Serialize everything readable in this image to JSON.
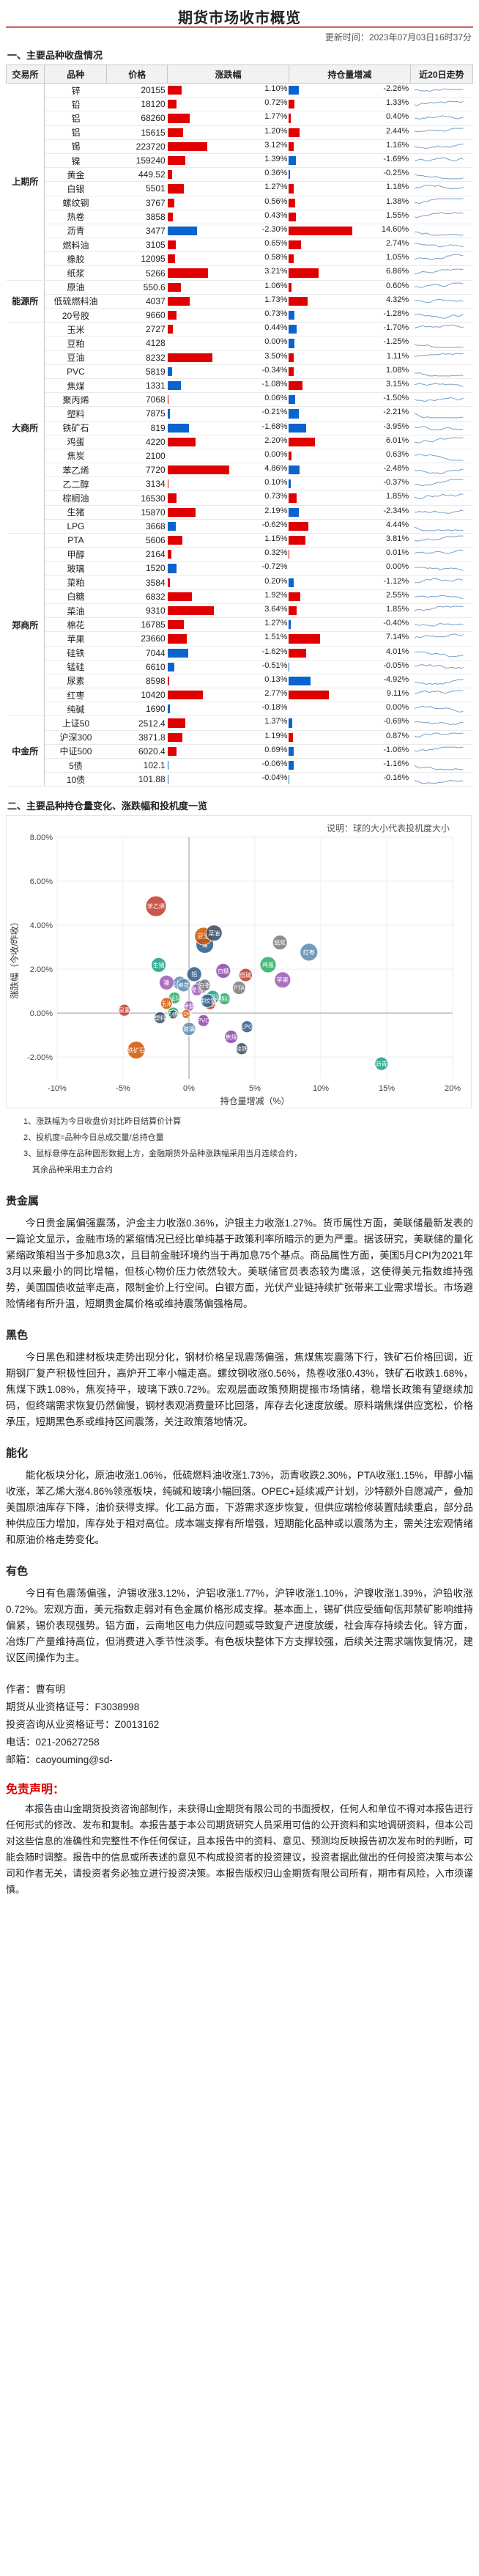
{
  "header": {
    "title": "期货市场收市概览",
    "update_time": "更新时间：2023年07月03日16时37分"
  },
  "section1": {
    "title": "一、主要品种收盘情况",
    "columns": [
      "交易所",
      "品种",
      "价格",
      "涨跌幅",
      "持仓量增减",
      "近20日走势"
    ]
  },
  "table": {
    "groups": [
      {
        "exchange": "上期所",
        "rows": [
          {
            "name": "锌",
            "price": "20155",
            "chg": 1.1,
            "chg_text": "1.10%",
            "pos": -2.26,
            "pos_text": "-2.26%"
          },
          {
            "name": "铅",
            "price": "18120",
            "chg": 0.72,
            "chg_text": "0.72%",
            "pos": 1.33,
            "pos_text": "1.33%"
          },
          {
            "name": "铝",
            "price": "68260",
            "chg": 1.77,
            "chg_text": "1.77%",
            "pos": 0.4,
            "pos_text": "0.40%"
          },
          {
            "name": "铝",
            "price": "15615",
            "chg": 1.2,
            "chg_text": "1.20%",
            "pos": 2.44,
            "pos_text": "2.44%"
          },
          {
            "name": "锡",
            "price": "223720",
            "chg": 3.12,
            "chg_text": "3.12%",
            "pos": 1.16,
            "pos_text": "1.16%"
          },
          {
            "name": "镍",
            "price": "159240",
            "chg": 1.39,
            "chg_text": "1.39%",
            "pos": -1.69,
            "pos_text": "-1.69%"
          },
          {
            "name": "黄金",
            "price": "449.52",
            "chg": 0.36,
            "chg_text": "0.36%",
            "pos": -0.25,
            "pos_text": "-0.25%"
          },
          {
            "name": "白银",
            "price": "5501",
            "chg": 1.27,
            "chg_text": "1.27%",
            "pos": 1.18,
            "pos_text": "1.18%"
          },
          {
            "name": "螺纹钢",
            "price": "3767",
            "chg": 0.56,
            "chg_text": "0.56%",
            "pos": 1.38,
            "pos_text": "1.38%"
          },
          {
            "name": "热卷",
            "price": "3858",
            "chg": 0.43,
            "chg_text": "0.43%",
            "pos": 1.55,
            "pos_text": "1.55%"
          },
          {
            "name": "沥青",
            "price": "3477",
            "chg": -2.3,
            "chg_text": "-2.30%",
            "pos": 14.6,
            "pos_text": "14.60%"
          },
          {
            "name": "燃料油",
            "price": "3105",
            "chg": 0.65,
            "chg_text": "0.65%",
            "pos": 2.74,
            "pos_text": "2.74%"
          },
          {
            "name": "橡胶",
            "price": "12095",
            "chg": 0.58,
            "chg_text": "0.58%",
            "pos": 1.05,
            "pos_text": "1.05%"
          },
          {
            "name": "纸浆",
            "price": "5266",
            "chg": 3.21,
            "chg_text": "3.21%",
            "pos": 6.86,
            "pos_text": "6.86%"
          }
        ]
      },
      {
        "exchange": "能源所",
        "rows": [
          {
            "name": "原油",
            "price": "550.6",
            "chg": 1.06,
            "chg_text": "1.06%",
            "pos": 0.6,
            "pos_text": "0.60%"
          },
          {
            "name": "低硫燃料油",
            "price": "4037",
            "chg": 1.73,
            "chg_text": "1.73%",
            "pos": 4.32,
            "pos_text": "4.32%"
          },
          {
            "name": "20号胶",
            "price": "9660",
            "chg": 0.73,
            "chg_text": "0.73%",
            "pos": -1.28,
            "pos_text": "-1.28%"
          }
        ]
      },
      {
        "exchange": "大商所",
        "rows": [
          {
            "name": "玉米",
            "price": "2727",
            "chg": 0.44,
            "chg_text": "0.44%",
            "pos": -1.7,
            "pos_text": "-1.70%"
          },
          {
            "name": "豆粕",
            "price": "4128",
            "chg": 0.0,
            "chg_text": "0.00%",
            "pos": -1.25,
            "pos_text": "-1.25%"
          },
          {
            "name": "豆油",
            "price": "8232",
            "chg": 3.5,
            "chg_text": "3.50%",
            "pos": 1.11,
            "pos_text": "1.11%"
          },
          {
            "name": "PVC",
            "price": "5819",
            "chg": -0.34,
            "chg_text": "-0.34%",
            "pos": 1.08,
            "pos_text": "1.08%"
          },
          {
            "name": "焦煤",
            "price": "1331",
            "chg": -1.08,
            "chg_text": "-1.08%",
            "pos": 3.15,
            "pos_text": "3.15%"
          },
          {
            "name": "聚丙烯",
            "price": "7068",
            "chg": 0.06,
            "chg_text": "0.06%",
            "pos": -1.5,
            "pos_text": "-1.50%"
          },
          {
            "name": "塑料",
            "price": "7875",
            "chg": -0.21,
            "chg_text": "-0.21%",
            "pos": -2.21,
            "pos_text": "-2.21%"
          },
          {
            "name": "铁矿石",
            "price": "819",
            "chg": -1.68,
            "chg_text": "-1.68%",
            "pos": -3.95,
            "pos_text": "-3.95%"
          },
          {
            "name": "鸡蛋",
            "price": "4220",
            "chg": 2.2,
            "chg_text": "2.20%",
            "pos": 6.01,
            "pos_text": "6.01%"
          },
          {
            "name": "焦炭",
            "price": "2100",
            "chg": 0.0,
            "chg_text": "0.00%",
            "pos": 0.63,
            "pos_text": "0.63%"
          },
          {
            "name": "苯乙烯",
            "price": "7720",
            "chg": 4.86,
            "chg_text": "4.86%",
            "pos": -2.48,
            "pos_text": "-2.48%"
          },
          {
            "name": "乙二醇",
            "price": "3134",
            "chg": 0.1,
            "chg_text": "0.10%",
            "pos": -0.37,
            "pos_text": "-0.37%"
          },
          {
            "name": "棕榈油",
            "price": "16530",
            "chg": 0.73,
            "chg_text": "0.73%",
            "pos": 1.85,
            "pos_text": "1.85%"
          },
          {
            "name": "生猪",
            "price": "15870",
            "chg": 2.19,
            "chg_text": "2.19%",
            "pos": -2.34,
            "pos_text": "-2.34%"
          },
          {
            "name": "LPG",
            "price": "3668",
            "chg": -0.62,
            "chg_text": "-0.62%",
            "pos": 4.44,
            "pos_text": "4.44%"
          }
        ]
      },
      {
        "exchange": "郑商所",
        "rows": [
          {
            "name": "PTA",
            "price": "5606",
            "chg": 1.15,
            "chg_text": "1.15%",
            "pos": 3.81,
            "pos_text": "3.81%"
          },
          {
            "name": "甲醇",
            "price": "2164",
            "chg": 0.32,
            "chg_text": "0.32%",
            "pos": 0.01,
            "pos_text": "0.01%"
          },
          {
            "name": "玻璃",
            "price": "1520",
            "chg": -0.72,
            "chg_text": "-0.72%",
            "pos": 0.0,
            "pos_text": "0.00%"
          },
          {
            "name": "菜粕",
            "price": "3584",
            "chg": 0.2,
            "chg_text": "0.20%",
            "pos": -1.12,
            "pos_text": "-1.12%"
          },
          {
            "name": "白糖",
            "price": "6832",
            "chg": 1.92,
            "chg_text": "1.92%",
            "pos": 2.55,
            "pos_text": "2.55%"
          },
          {
            "name": "菜油",
            "price": "9310",
            "chg": 3.64,
            "chg_text": "3.64%",
            "pos": 1.85,
            "pos_text": "1.85%"
          },
          {
            "name": "棉花",
            "price": "16785",
            "chg": 1.27,
            "chg_text": "1.27%",
            "pos": -0.4,
            "pos_text": "-0.40%"
          },
          {
            "name": "苹果",
            "price": "23660",
            "chg": 1.51,
            "chg_text": "1.51%",
            "pos": 7.14,
            "pos_text": "7.14%"
          },
          {
            "name": "硅铁",
            "price": "7044",
            "chg": -1.62,
            "chg_text": "-1.62%",
            "pos": 4.01,
            "pos_text": "4.01%"
          },
          {
            "name": "锰硅",
            "price": "6610",
            "chg": -0.51,
            "chg_text": "-0.51%",
            "pos": -0.05,
            "pos_text": "-0.05%"
          },
          {
            "name": "尿素",
            "price": "8598",
            "chg": 0.13,
            "chg_text": "0.13%",
            "pos": -4.92,
            "pos_text": "-4.92%"
          },
          {
            "name": "红枣",
            "price": "10420",
            "chg": 2.77,
            "chg_text": "2.77%",
            "pos": 9.11,
            "pos_text": "9.11%"
          },
          {
            "name": "纯碱",
            "price": "1690",
            "chg": -0.18,
            "chg_text": "-0.18%",
            "pos": 0.0,
            "pos_text": "0.00%"
          }
        ]
      },
      {
        "exchange": "中金所",
        "rows": [
          {
            "name": "上证50",
            "price": "2512.4",
            "chg": 1.37,
            "chg_text": "1.37%",
            "pos": -0.69,
            "pos_text": "-0.69%"
          },
          {
            "name": "沪深300",
            "price": "3871.8",
            "chg": 1.19,
            "chg_text": "1.19%",
            "pos": 0.87,
            "pos_text": "0.87%"
          },
          {
            "name": "中证500",
            "price": "6020.4",
            "chg": 0.69,
            "chg_text": "0.69%",
            "pos": -1.06,
            "pos_text": "-1.06%"
          },
          {
            "name": "5债",
            "price": "102.1",
            "chg": -0.06,
            "chg_text": "-0.06%",
            "pos": -1.16,
            "pos_text": "-1.16%"
          },
          {
            "name": "10债",
            "price": "101.88",
            "chg": -0.04,
            "chg_text": "-0.04%",
            "pos": -0.16,
            "pos_text": "-0.16%"
          }
        ]
      }
    ]
  },
  "section2": {
    "title": "二、主要品种持仓量变化、涨跌幅和投机度一览",
    "note_label": "说明：球的大小代表投机度大小"
  },
  "chart_data": {
    "type": "scatter",
    "xlabel": "持仓量增减（%）",
    "ylabel": "涨跌幅（今收/昨收）",
    "xlim": [
      -0.1,
      0.2
    ],
    "ylim": [
      -0.03,
      0.08
    ],
    "x_ticks": [
      "-10%",
      "-5%",
      "0%",
      "5%",
      "10%",
      "15%",
      "20%"
    ],
    "y_ticks": [
      "-2.00%",
      "0.00%",
      "2.00%",
      "4.00%",
      "6.00%",
      "8.00%"
    ],
    "points": [
      {
        "label": "苯乙烯",
        "x": -0.025,
        "y": 0.0486,
        "size": 14
      },
      {
        "label": "锡",
        "x": 0.012,
        "y": 0.0312,
        "size": 12
      },
      {
        "label": "纸浆",
        "x": 0.069,
        "y": 0.0321,
        "size": 10
      },
      {
        "label": "红枣",
        "x": 0.091,
        "y": 0.0277,
        "size": 12
      },
      {
        "label": "苹果",
        "x": 0.071,
        "y": 0.0151,
        "size": 11
      },
      {
        "label": "鸡蛋",
        "x": 0.06,
        "y": 0.022,
        "size": 11
      },
      {
        "label": "豆油",
        "x": 0.011,
        "y": 0.035,
        "size": 12
      },
      {
        "label": "菜油",
        "x": 0.019,
        "y": 0.0364,
        "size": 11
      },
      {
        "label": "白糖",
        "x": 0.026,
        "y": 0.0192,
        "size": 10
      },
      {
        "label": "生猪",
        "x": -0.023,
        "y": 0.0219,
        "size": 10
      },
      {
        "label": "低硫",
        "x": 0.043,
        "y": 0.0173,
        "size": 9
      },
      {
        "label": "铝",
        "x": 0.004,
        "y": 0.0177,
        "size": 10
      },
      {
        "label": "沪深300",
        "x": 0.009,
        "y": 0.0119,
        "size": 9
      },
      {
        "label": "上证50",
        "x": -0.007,
        "y": 0.0137,
        "size": 9
      },
      {
        "label": "镍",
        "x": -0.017,
        "y": 0.0139,
        "size": 10
      },
      {
        "label": "燃料油",
        "x": 0.027,
        "y": 0.0065,
        "size": 8
      },
      {
        "label": "铁矿石",
        "x": -0.04,
        "y": -0.0168,
        "size": 12
      },
      {
        "label": "硅铁",
        "x": 0.04,
        "y": -0.0162,
        "size": 8
      },
      {
        "label": "焦煤",
        "x": 0.032,
        "y": -0.0108,
        "size": 9
      },
      {
        "label": "沥青",
        "x": 0.146,
        "y": -0.023,
        "size": 9
      },
      {
        "label": "尿素",
        "x": -0.049,
        "y": 0.0013,
        "size": 8
      },
      {
        "label": "LPG",
        "x": 0.044,
        "y": -0.0062,
        "size": 8
      },
      {
        "label": "PTA",
        "x": 0.038,
        "y": 0.0115,
        "size": 9
      },
      {
        "label": "玻璃",
        "x": 0.0,
        "y": -0.0072,
        "size": 9
      },
      {
        "label": "原油",
        "x": 0.006,
        "y": 0.0106,
        "size": 8
      },
      {
        "label": "中证500",
        "x": -0.011,
        "y": 0.0069,
        "size": 8
      },
      {
        "label": "玉米",
        "x": -0.017,
        "y": 0.0044,
        "size": 8
      },
      {
        "label": "塑料",
        "x": -0.022,
        "y": -0.0021,
        "size": 8
      },
      {
        "label": "PVC",
        "x": 0.011,
        "y": -0.0034,
        "size": 8
      },
      {
        "label": "棕榈油",
        "x": 0.018,
        "y": 0.0073,
        "size": 9
      },
      {
        "label": "热卷",
        "x": 0.016,
        "y": 0.0043,
        "size": 8
      },
      {
        "label": "螺纹钢",
        "x": 0.014,
        "y": 0.0056,
        "size": 9
      },
      {
        "label": "白银",
        "x": 0.012,
        "y": 0.0127,
        "size": 8
      },
      {
        "label": "棉花",
        "x": -0.004,
        "y": 0.0127,
        "size": 9
      },
      {
        "label": "甲醇",
        "x": 0.0,
        "y": 0.0032,
        "size": 7
      },
      {
        "label": "豆粕",
        "x": -0.012,
        "y": 0.0,
        "size": 8
      },
      {
        "label": "10债",
        "x": -0.002,
        "y": -0.0004,
        "size": 6
      },
      {
        "label": "5债",
        "x": -0.012,
        "y": -0.0006,
        "size": 6
      }
    ]
  },
  "chart_notes": [
    "1、涨跌幅为今日收盘价对比昨日结算价计算",
    "2、投机度=品种今日总成交量/总持仓量",
    "3、鼠标悬停在品种圆形数据上方，金融期货外品种涨跌幅采用当月连续合约，"
  ],
  "chart_notes_cont": "其余品种采用主力合约",
  "articles": [
    {
      "title": "贵金属",
      "body": "今日贵金属偏强震荡，沪金主力收涨0.36%，沪银主力收涨1.27%。货币属性方面，美联储最新发表的一篇论文显示，金融市场的紧缩情况已经比单纯基于政策利率所暗示的更为严重。据该研究，美联储的量化紧缩政策相当于多加息3次，且目前金融环境约当于再加息75个基点。商品属性方面，美国5月CPI为2021年3月以来最小的同比增幅，但核心物价压力依然较大。美联储官员表态较为鹰派，这使得美元指数维持强势，美国国债收益率走高，限制金价上行空间。白银方面，光伏产业链持续扩张带来工业需求增长。市场避险情绪有所升温，短期贵金属价格或维持震荡偏强格局。"
    },
    {
      "title": "黑色",
      "body": "今日黑色和建材板块走势出现分化，钢材价格呈现震荡偏强，焦煤焦炭震荡下行，铁矿石价格回调，近期钢厂复产积极性回升，高炉开工率小幅走高。螺纹钢收涨0.56%，热卷收涨0.43%，铁矿石收跌1.68%，焦煤下跌1.08%，焦炭持平，玻璃下跌0.72%。宏观层面政策预期提振市场情绪，稳增长政策有望继续加码，但终端需求恢复仍然偏慢，钢材表观消费量环比回落，库存去化速度放缓。原料端焦煤供应宽松，价格承压，短期黑色系或维持区间震荡，关注政策落地情况。"
    },
    {
      "title": "能化",
      "body": "能化板块分化，原油收涨1.06%，低硫燃料油收涨1.73%，沥青收跌2.30%，PTA收涨1.15%，甲醇小幅收涨，苯乙烯大涨4.86%领涨板块，纯碱和玻璃小幅回落。OPEC+延续减产计划，沙特额外自愿减产，叠加美国原油库存下降，油价获得支撑。化工品方面，下游需求逐步恢复，但供应端检修装置陆续重启，部分品种供应压力增加，库存处于相对高位。成本端支撑有所增强，短期能化品种或以震荡为主，需关注宏观情绪和原油价格走势变化。"
    },
    {
      "title": "有色",
      "body": "今日有色震荡偏强，沪锡收涨3.12%，沪铝收涨1.77%，沪锌收涨1.10%，沪镍收涨1.39%，沪铅收涨0.72%。宏观方面，美元指数走弱对有色金属价格形成支撑。基本面上，锡矿供应受缅甸佤邦禁矿影响维持偏紧，锡价表现强势。铝方面，云南地区电力供应问题或导致复产进度放缓，社会库存持续去化。锌方面，冶炼厂产量维持高位，但消费进入季节性淡季。有色板块整体下方支撑较强，后续关注需求端恢复情况，建议区间操作为主。"
    }
  ],
  "footer": {
    "author": "作者：曹有明",
    "qual_no": "期货从业资格证号：F3038998",
    "invest_no": "投资咨询从业资格证号：Z0013162",
    "phone": "电话：021-20627258",
    "email": "邮箱：caoyouming@sd-"
  },
  "disclaimer": {
    "title": "免责声明：",
    "body": "本报告由山金期货投资咨询部制作，未获得山金期货有限公司的书面授权，任何人和单位不得对本报告进行任何形式的修改、发布和复制。本报告基于本公司期货研究人员采用可信的公开资料和实地调研资料，但本公司对这些信息的准确性和完整性不作任何保证，且本报告中的资料、意见、预测均反映报告初次发布时的判断，可能会随时调整。报告中的信息或所表述的意见不构成投资者的投资建议，投资者据此做出的任何投资决策与本公司和作者无关，请投资者务必独立进行投资决策。本报告版权归山金期货有限公司所有，期市有风险，入市须谨慎。"
  },
  "colors": {
    "up": "#e00000",
    "down": "#0a64d0",
    "title_rule": "#d06060"
  },
  "icons": [
    "sparkline-icon"
  ]
}
